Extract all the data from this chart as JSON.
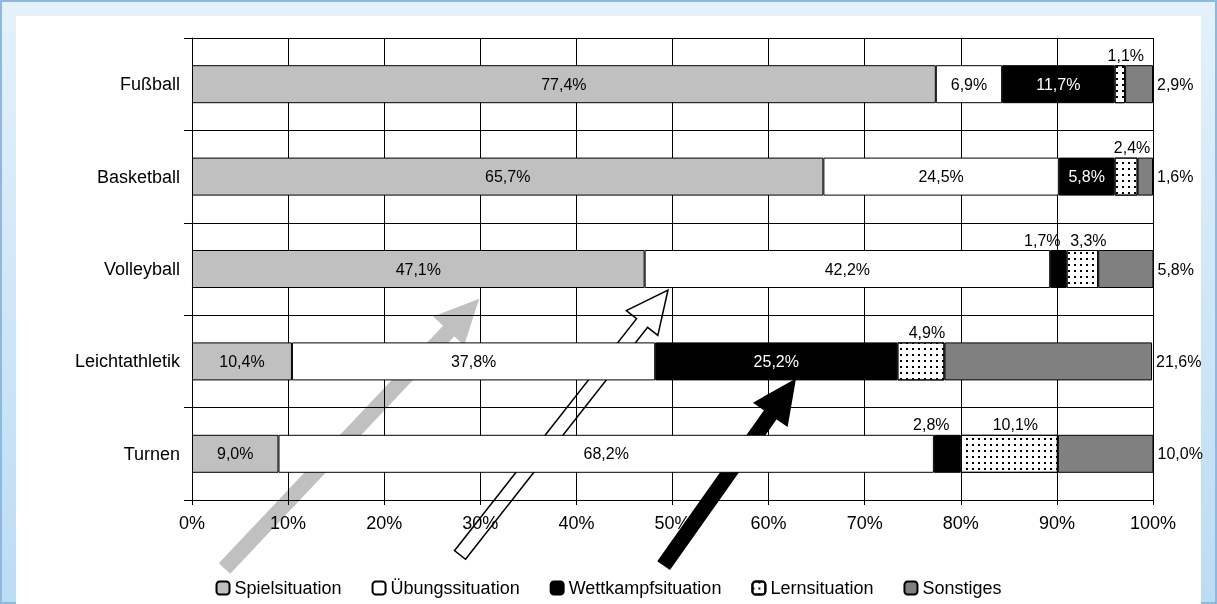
{
  "chart_data": {
    "type": "bar",
    "orientation": "horizontal",
    "stacked": true,
    "categories": [
      "Fußball",
      "Basketball",
      "Volleyball",
      "Leichtathletik",
      "Turnen"
    ],
    "series": [
      {
        "name": "Spielsituation",
        "color": "#c0c0c0",
        "values": [
          77.4,
          65.7,
          47.1,
          10.4,
          9.0
        ],
        "value_labels": [
          "77,4%",
          "65,7%",
          "47,1%",
          "10,4%",
          "9,0%"
        ]
      },
      {
        "name": "Übungssituation",
        "color": "#ffffff",
        "values": [
          6.9,
          24.5,
          42.2,
          37.8,
          68.2
        ],
        "value_labels": [
          "6,9%",
          "24,5%",
          "42,2%",
          "37,8%",
          "68,2%"
        ]
      },
      {
        "name": "Wettkampfsituation",
        "color": "#000000",
        "values": [
          11.7,
          5.8,
          1.7,
          25.2,
          2.8
        ],
        "value_labels": [
          "11,7%",
          "5,8%",
          "1,7%",
          "25,2%",
          "2,8%"
        ]
      },
      {
        "name": "Lernsituation",
        "color": "#ffffff",
        "values": [
          1.1,
          2.4,
          3.3,
          4.9,
          10.1
        ],
        "value_labels": [
          "1,1%",
          "2,4%",
          "3,3%",
          "4,9%",
          "10,1%"
        ]
      },
      {
        "name": "Sonstiges",
        "color": "#808080",
        "values": [
          2.9,
          1.6,
          5.8,
          21.6,
          10.0
        ],
        "value_labels": [
          "2,9%",
          "1,6%",
          "5,8%",
          "21,6%",
          "10,0%"
        ]
      }
    ],
    "xlim": [
      0,
      100
    ],
    "xticks": [
      {
        "value": 0,
        "label": "0%"
      },
      {
        "value": 10,
        "label": "10%"
      },
      {
        "value": 20,
        "label": "20%"
      },
      {
        "value": 30,
        "label": "30%"
      },
      {
        "value": 40,
        "label": "40%"
      },
      {
        "value": 50,
        "label": "50%"
      },
      {
        "value": 60,
        "label": "60%"
      },
      {
        "value": 70,
        "label": "70%"
      },
      {
        "value": 80,
        "label": "80%"
      },
      {
        "value": 90,
        "label": "90%"
      },
      {
        "value": 100,
        "label": "100%"
      }
    ],
    "grid": true,
    "legend": "bottom"
  }
}
